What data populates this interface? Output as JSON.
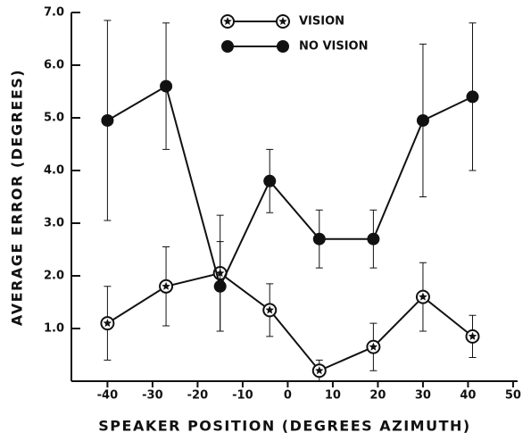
{
  "chart_data": {
    "type": "line",
    "xlabel": "SPEAKER POSITION (DEGREES AZIMUTH)",
    "ylabel": "AVERAGE ERROR (DEGREES)",
    "x": [
      -40,
      -27,
      -15,
      -4,
      7,
      19,
      30,
      41
    ],
    "series": [
      {
        "name": "VISION",
        "color": "#111111",
        "marker": "star-circle",
        "values": [
          1.1,
          1.8,
          2.05,
          1.35,
          0.2,
          0.65,
          1.6,
          0.85
        ],
        "errors": [
          0.7,
          0.75,
          1.1,
          0.5,
          0.2,
          0.45,
          0.65,
          0.4
        ]
      },
      {
        "name": "NO VISION",
        "color": "#111111",
        "marker": "filled-circle",
        "values": [
          4.95,
          5.6,
          1.8,
          3.8,
          2.7,
          2.7,
          4.95,
          5.4
        ],
        "errors": [
          1.9,
          1.2,
          0.85,
          0.6,
          0.55,
          0.55,
          1.45,
          1.4
        ]
      }
    ],
    "xlim": [
      -48,
      51
    ],
    "xticks": [
      -40,
      -30,
      -20,
      -10,
      0,
      10,
      20,
      30,
      40,
      50
    ],
    "ylim": [
      0,
      7
    ],
    "yticks": [
      {
        "value": 1,
        "label": "1.0"
      },
      {
        "value": 2,
        "label": "2.0"
      },
      {
        "value": 3,
        "label": "3.0"
      },
      {
        "value": 4,
        "label": "4.0"
      },
      {
        "value": 5,
        "label": "5.0"
      },
      {
        "value": 6,
        "label": "6.0"
      },
      {
        "value": 7,
        "label": "7.0"
      }
    ],
    "grid": false,
    "legend": "top"
  }
}
